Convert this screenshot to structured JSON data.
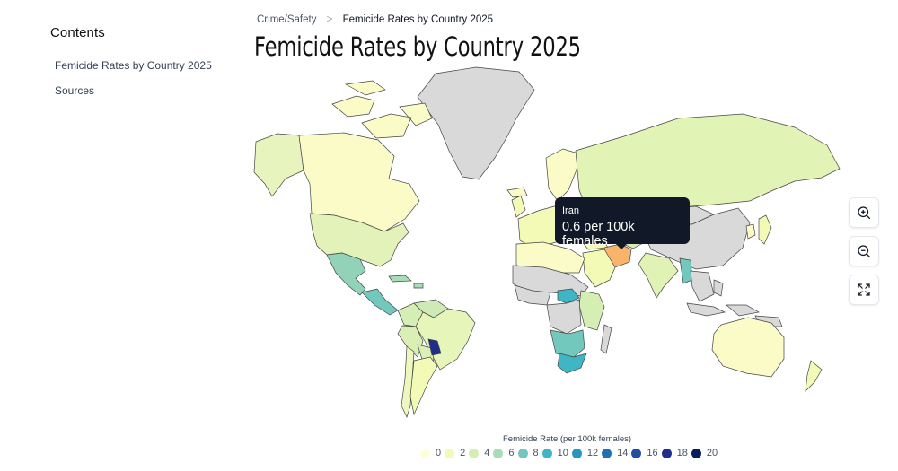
{
  "contents": {
    "heading": "Contents",
    "items": [
      {
        "label": "Femicide Rates by Country 2025"
      },
      {
        "label": "Sources"
      }
    ]
  },
  "breadcrumb": {
    "parent": "Crime/Safety",
    "separator": ">",
    "current": "Femicide Rates by Country 2025"
  },
  "page_title": "Femicide Rates by Country 2025",
  "tooltip": {
    "country": "Iran",
    "rate": "0.6 per 100k females"
  },
  "controls": [
    {
      "name": "zoom-in",
      "icon": "zoom-in-icon"
    },
    {
      "name": "zoom-out",
      "icon": "zoom-out-icon"
    },
    {
      "name": "fullscreen",
      "icon": "expand-icon"
    }
  ],
  "legend": {
    "title": "Femicide Rate (per 100k females)",
    "stops": [
      {
        "label": "0",
        "color": "#ffffd9"
      },
      {
        "label": "2",
        "color": "#f3fab6"
      },
      {
        "label": "4",
        "color": "#d5eeb3"
      },
      {
        "label": "6",
        "color": "#a9ddb7"
      },
      {
        "label": "8",
        "color": "#73c8bd"
      },
      {
        "label": "10",
        "color": "#40b6c4"
      },
      {
        "label": "12",
        "color": "#2498c1"
      },
      {
        "label": "14",
        "color": "#2070b4"
      },
      {
        "label": "16",
        "color": "#234da0"
      },
      {
        "label": "18",
        "color": "#1f2e88"
      },
      {
        "label": "20",
        "color": "#081d58"
      }
    ]
  },
  "map": {
    "no_data_color": "#d9d9d9",
    "highlight_color": "#f8b46a",
    "regions": [
      {
        "name": "greenland",
        "fill": "#d9d9d9"
      },
      {
        "name": "canada",
        "fill": "#fafbc7"
      },
      {
        "name": "alaska",
        "fill": "#e8f4bd"
      },
      {
        "name": "arctic-islands",
        "fill": "#fafbc7"
      },
      {
        "name": "usa",
        "fill": "#e3f2b8"
      },
      {
        "name": "mexico",
        "fill": "#91d2b9"
      },
      {
        "name": "central-america",
        "fill": "#73c8bd"
      },
      {
        "name": "caribbean",
        "fill": "#a9ddb7"
      },
      {
        "name": "colombia",
        "fill": "#d5eeb3"
      },
      {
        "name": "venezuela",
        "fill": "#cfeab4"
      },
      {
        "name": "brazil",
        "fill": "#e6f5ba"
      },
      {
        "name": "peru",
        "fill": "#d9efb4"
      },
      {
        "name": "bolivia",
        "fill": "#dcefb5"
      },
      {
        "name": "paraguay",
        "fill": "#1f2e88"
      },
      {
        "name": "argentina",
        "fill": "#f3fab6"
      },
      {
        "name": "chile",
        "fill": "#eef8bd"
      },
      {
        "name": "europe",
        "fill": "#f3fab6"
      },
      {
        "name": "scandinavia",
        "fill": "#fafbc7"
      },
      {
        "name": "uk",
        "fill": "#f3fab6"
      },
      {
        "name": "iceland",
        "fill": "#fafbc7"
      },
      {
        "name": "russia",
        "fill": "#e2f3b6"
      },
      {
        "name": "china",
        "fill": "#d9d9d9"
      },
      {
        "name": "mongolia",
        "fill": "#d9d9d9"
      },
      {
        "name": "kazakhstan",
        "fill": "#e6f5ba"
      },
      {
        "name": "central-asia",
        "fill": "#d5eeb3"
      },
      {
        "name": "iran",
        "fill": "#f8b46a"
      },
      {
        "name": "arabia",
        "fill": "#f3fab6"
      },
      {
        "name": "turkey",
        "fill": "#f3fab6"
      },
      {
        "name": "india",
        "fill": "#e1f2b5"
      },
      {
        "name": "myanmar",
        "fill": "#73c8bd"
      },
      {
        "name": "southeast-asia",
        "fill": "#d9d9d9"
      },
      {
        "name": "indonesia",
        "fill": "#d9d9d9"
      },
      {
        "name": "japan",
        "fill": "#f3fab6"
      },
      {
        "name": "korea",
        "fill": "#fafbc7"
      },
      {
        "name": "north-africa",
        "fill": "#fafbc7"
      },
      {
        "name": "sahel",
        "fill": "#d9d9d9"
      },
      {
        "name": "west-africa",
        "fill": "#d9d9d9"
      },
      {
        "name": "central-african-republic",
        "fill": "#40b6c4"
      },
      {
        "name": "east-africa",
        "fill": "#d5eeb3"
      },
      {
        "name": "congo",
        "fill": "#d9d9d9"
      },
      {
        "name": "southern-africa",
        "fill": "#73c8bd"
      },
      {
        "name": "south-africa",
        "fill": "#40b6c4"
      },
      {
        "name": "madagascar",
        "fill": "#d9d9d9"
      },
      {
        "name": "australia",
        "fill": "#fafbc7"
      },
      {
        "name": "new-zealand",
        "fill": "#f3fab6"
      },
      {
        "name": "papua",
        "fill": "#d9d9d9"
      }
    ]
  }
}
